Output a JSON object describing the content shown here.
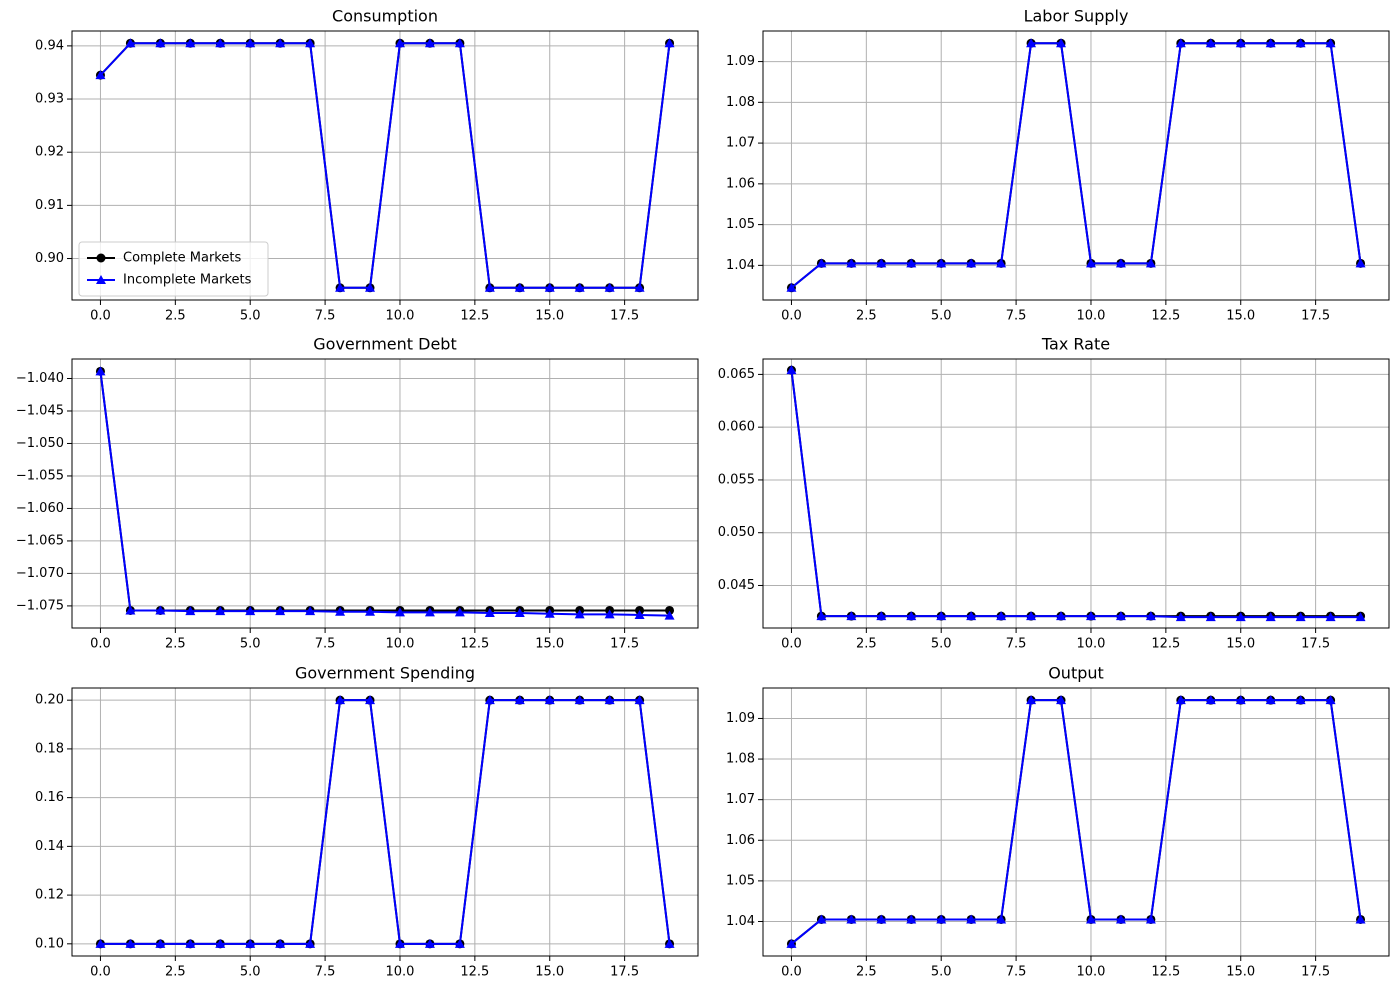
{
  "chart_data": [
    {
      "type": "line",
      "title": "Consumption",
      "x": [
        0,
        1,
        2,
        3,
        4,
        5,
        6,
        7,
        8,
        9,
        10,
        11,
        12,
        13,
        14,
        15,
        16,
        17,
        18,
        19
      ],
      "series": [
        {
          "name": "Complete Markets",
          "color": "#000000",
          "marker": "circle",
          "values": [
            0.9345,
            0.9405,
            0.9405,
            0.9405,
            0.9405,
            0.9405,
            0.9405,
            0.9405,
            0.8945,
            0.8945,
            0.9405,
            0.9405,
            0.9405,
            0.8945,
            0.8945,
            0.8945,
            0.8945,
            0.8945,
            0.8945,
            0.9405
          ]
        },
        {
          "name": "Incomplete Markets",
          "color": "#0000ff",
          "marker": "triangle",
          "values": [
            0.9345,
            0.9405,
            0.9405,
            0.9405,
            0.9405,
            0.9405,
            0.9405,
            0.9405,
            0.8945,
            0.8945,
            0.9405,
            0.9405,
            0.9405,
            0.8945,
            0.8945,
            0.8945,
            0.8945,
            0.8945,
            0.8945,
            0.9405
          ]
        }
      ],
      "xlim": [
        -0.95,
        19.95
      ],
      "ylim": [
        0.8922,
        0.9428
      ],
      "xticks": [
        {
          "value": 0,
          "label": "0.0"
        },
        2.5,
        {
          "value": 5,
          "label": "5.0"
        },
        7.5,
        {
          "value": 10,
          "label": "10.0"
        },
        12.5,
        {
          "value": 15,
          "label": "15.0"
        },
        17.5
      ],
      "yticks": [
        {
          "value": 0.9,
          "label": "0.90"
        },
        0.91,
        0.92,
        0.93,
        0.94
      ],
      "grid": true,
      "legend": "lower left"
    },
    {
      "type": "line",
      "title": "Labor Supply",
      "x": [
        0,
        1,
        2,
        3,
        4,
        5,
        6,
        7,
        8,
        9,
        10,
        11,
        12,
        13,
        14,
        15,
        16,
        17,
        18,
        19
      ],
      "series": [
        {
          "color": "#000000",
          "marker": "circle",
          "values": [
            1.0345,
            1.0405,
            1.0405,
            1.0405,
            1.0405,
            1.0405,
            1.0405,
            1.0405,
            1.0945,
            1.0945,
            1.0405,
            1.0405,
            1.0405,
            1.0945,
            1.0945,
            1.0945,
            1.0945,
            1.0945,
            1.0945,
            1.0405
          ]
        },
        {
          "color": "#0000ff",
          "marker": "triangle",
          "values": [
            1.0345,
            1.0405,
            1.0405,
            1.0405,
            1.0405,
            1.0405,
            1.0405,
            1.0405,
            1.0945,
            1.0945,
            1.0405,
            1.0405,
            1.0405,
            1.0945,
            1.0945,
            1.0945,
            1.0945,
            1.0945,
            1.0945,
            1.0405
          ]
        }
      ],
      "xlim": [
        -0.95,
        19.95
      ],
      "ylim": [
        1.0315,
        1.0975
      ],
      "xticks": [
        {
          "value": 0,
          "label": "0.0"
        },
        2.5,
        {
          "value": 5,
          "label": "5.0"
        },
        7.5,
        {
          "value": 10,
          "label": "10.0"
        },
        12.5,
        {
          "value": 15,
          "label": "15.0"
        },
        17.5
      ],
      "yticks": [
        1.04,
        1.05,
        1.06,
        1.07,
        1.08,
        1.09
      ],
      "grid": true
    },
    {
      "type": "line",
      "title": "Government Debt",
      "x": [
        0,
        1,
        2,
        3,
        4,
        5,
        6,
        7,
        8,
        9,
        10,
        11,
        12,
        13,
        14,
        15,
        16,
        17,
        18,
        19
      ],
      "series": [
        {
          "color": "#000000",
          "marker": "circle",
          "values": [
            -1.0389,
            -1.0757,
            -1.0757,
            -1.0757,
            -1.0757,
            -1.0757,
            -1.0757,
            -1.0757,
            -1.0757,
            -1.0757,
            -1.0757,
            -1.0757,
            -1.0757,
            -1.0757,
            -1.0757,
            -1.0757,
            -1.0757,
            -1.0757,
            -1.0757,
            -1.0757
          ]
        },
        {
          "color": "#0000ff",
          "marker": "triangle",
          "values": [
            -1.0389,
            -1.0757,
            -1.0757,
            -1.0758,
            -1.0758,
            -1.0758,
            -1.0758,
            -1.0758,
            -1.0759,
            -1.0759,
            -1.076,
            -1.076,
            -1.076,
            -1.0761,
            -1.0761,
            -1.0762,
            -1.0763,
            -1.0763,
            -1.0764,
            -1.0765
          ]
        }
      ],
      "xlim": [
        -0.95,
        19.95
      ],
      "ylim": [
        -1.0784,
        -1.037
      ],
      "xticks": [
        {
          "value": 0,
          "label": "0.0"
        },
        2.5,
        {
          "value": 5,
          "label": "5.0"
        },
        7.5,
        {
          "value": 10,
          "label": "10.0"
        },
        12.5,
        {
          "value": 15,
          "label": "15.0"
        },
        17.5
      ],
      "yticks": [
        {
          "value": -1.04,
          "label": "−1.040"
        },
        {
          "value": -1.045,
          "label": "−1.045"
        },
        {
          "value": -1.05,
          "label": "−1.050"
        },
        {
          "value": -1.055,
          "label": "−1.055"
        },
        {
          "value": -1.06,
          "label": "−1.060"
        },
        {
          "value": -1.065,
          "label": "−1.065"
        },
        {
          "value": -1.07,
          "label": "−1.070"
        },
        {
          "value": -1.075,
          "label": "−1.075"
        }
      ],
      "grid": true
    },
    {
      "type": "line",
      "title": "Tax Rate",
      "x": [
        0,
        1,
        2,
        3,
        4,
        5,
        6,
        7,
        8,
        9,
        10,
        11,
        12,
        13,
        14,
        15,
        16,
        17,
        18,
        19
      ],
      "series": [
        {
          "color": "#000000",
          "marker": "circle",
          "values": [
            0.0654,
            0.0421,
            0.0421,
            0.0421,
            0.0421,
            0.0421,
            0.0421,
            0.0421,
            0.0421,
            0.0421,
            0.0421,
            0.0421,
            0.0421,
            0.0421,
            0.0421,
            0.0421,
            0.0421,
            0.0421,
            0.0421,
            0.0421
          ]
        },
        {
          "color": "#0000ff",
          "marker": "triangle",
          "values": [
            0.0654,
            0.0421,
            0.0421,
            0.0421,
            0.0421,
            0.0421,
            0.0421,
            0.0421,
            0.0421,
            0.0421,
            0.0421,
            0.0421,
            0.0421,
            0.042,
            0.042,
            0.042,
            0.042,
            0.042,
            0.042,
            0.042
          ]
        }
      ],
      "xlim": [
        -0.95,
        19.95
      ],
      "ylim": [
        0.04097,
        0.06646
      ],
      "xticks": [
        {
          "value": 0,
          "label": "0.0"
        },
        2.5,
        {
          "value": 5,
          "label": "5.0"
        },
        7.5,
        {
          "value": 10,
          "label": "10.0"
        },
        12.5,
        {
          "value": 15,
          "label": "15.0"
        },
        17.5
      ],
      "yticks": [
        0.045,
        {
          "value": 0.05,
          "label": "0.050"
        },
        0.055,
        {
          "value": 0.06,
          "label": "0.060"
        },
        0.065
      ],
      "grid": true
    },
    {
      "type": "line",
      "title": "Government Spending",
      "x": [
        0,
        1,
        2,
        3,
        4,
        5,
        6,
        7,
        8,
        9,
        10,
        11,
        12,
        13,
        14,
        15,
        16,
        17,
        18,
        19
      ],
      "series": [
        {
          "color": "#000000",
          "marker": "circle",
          "values": [
            0.1,
            0.1,
            0.1,
            0.1,
            0.1,
            0.1,
            0.1,
            0.1,
            0.2,
            0.2,
            0.1,
            0.1,
            0.1,
            0.2,
            0.2,
            0.2,
            0.2,
            0.2,
            0.2,
            0.1
          ]
        },
        {
          "color": "#0000ff",
          "marker": "triangle",
          "values": [
            0.1,
            0.1,
            0.1,
            0.1,
            0.1,
            0.1,
            0.1,
            0.1,
            0.2,
            0.2,
            0.1,
            0.1,
            0.1,
            0.2,
            0.2,
            0.2,
            0.2,
            0.2,
            0.2,
            0.1
          ]
        }
      ],
      "xlim": [
        -0.95,
        19.95
      ],
      "ylim": [
        0.095,
        0.205
      ],
      "xticks": [
        {
          "value": 0,
          "label": "0.0"
        },
        2.5,
        {
          "value": 5,
          "label": "5.0"
        },
        7.5,
        {
          "value": 10,
          "label": "10.0"
        },
        12.5,
        {
          "value": 15,
          "label": "15.0"
        },
        17.5
      ],
      "yticks": [
        {
          "value": 0.1,
          "label": "0.10"
        },
        0.12,
        0.14,
        0.16,
        0.18,
        {
          "value": 0.2,
          "label": "0.20"
        }
      ],
      "grid": true
    },
    {
      "type": "line",
      "title": "Output",
      "x": [
        0,
        1,
        2,
        3,
        4,
        5,
        6,
        7,
        8,
        9,
        10,
        11,
        12,
        13,
        14,
        15,
        16,
        17,
        18,
        19
      ],
      "series": [
        {
          "color": "#000000",
          "marker": "circle",
          "values": [
            1.0345,
            1.0405,
            1.0405,
            1.0405,
            1.0405,
            1.0405,
            1.0405,
            1.0405,
            1.0945,
            1.0945,
            1.0405,
            1.0405,
            1.0405,
            1.0945,
            1.0945,
            1.0945,
            1.0945,
            1.0945,
            1.0945,
            1.0405
          ]
        },
        {
          "color": "#0000ff",
          "marker": "triangle",
          "values": [
            1.0345,
            1.0405,
            1.0405,
            1.0405,
            1.0405,
            1.0405,
            1.0405,
            1.0405,
            1.0945,
            1.0945,
            1.0405,
            1.0405,
            1.0405,
            1.0945,
            1.0945,
            1.0945,
            1.0945,
            1.0945,
            1.0945,
            1.0405
          ]
        }
      ],
      "xlim": [
        -0.95,
        19.95
      ],
      "ylim": [
        1.0315,
        1.0975
      ],
      "xticks": [
        {
          "value": 0,
          "label": "0.0"
        },
        2.5,
        {
          "value": 5,
          "label": "5.0"
        },
        7.5,
        {
          "value": 10,
          "label": "10.0"
        },
        12.5,
        {
          "value": 15,
          "label": "15.0"
        },
        17.5
      ],
      "yticks": [
        1.04,
        1.05,
        1.06,
        1.07,
        1.08,
        1.09
      ],
      "grid": true
    }
  ]
}
